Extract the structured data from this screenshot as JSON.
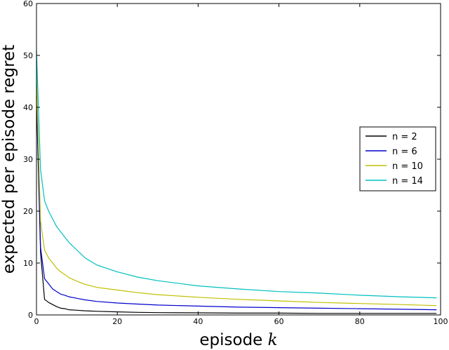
{
  "chart_data": {
    "type": "line",
    "title": "",
    "xlabel_prefix": "episode ",
    "xlabel_var": "k",
    "ylabel": "expected per episode regret",
    "xlim": [
      0,
      100
    ],
    "ylim": [
      0,
      60
    ],
    "xticks": [
      "0",
      "20",
      "40",
      "60",
      "80",
      "100"
    ],
    "yticks": [
      "0",
      "10",
      "20",
      "30",
      "40",
      "50",
      "60"
    ],
    "grid": false,
    "legend_position": "center-right",
    "x": [
      0,
      1,
      2,
      3,
      4,
      5,
      6,
      7,
      8,
      10,
      12,
      15,
      20,
      25,
      30,
      40,
      50,
      60,
      70,
      80,
      90,
      99
    ],
    "series": [
      {
        "name": "n = 2",
        "color": "#000000",
        "values": [
          42,
          12,
          3.0,
          2.4,
          2.0,
          1.6,
          1.3,
          1.2,
          1.0,
          0.9,
          0.8,
          0.7,
          0.6,
          0.5,
          0.45,
          0.4,
          0.35,
          0.35,
          0.3,
          0.3,
          0.3,
          0.3
        ]
      },
      {
        "name": "n = 6",
        "color": "#0000cc",
        "values": [
          44,
          13,
          7.0,
          6.0,
          5.0,
          4.5,
          4.0,
          3.8,
          3.5,
          3.2,
          2.9,
          2.6,
          2.3,
          2.1,
          1.9,
          1.7,
          1.5,
          1.4,
          1.3,
          1.2,
          1.1,
          1.0
        ]
      },
      {
        "name": "n = 10",
        "color": "#bfbf00",
        "values": [
          46,
          18,
          12.5,
          11.0,
          10.0,
          9.0,
          8.3,
          7.8,
          7.2,
          6.5,
          5.9,
          5.3,
          4.8,
          4.3,
          3.9,
          3.4,
          3.0,
          2.7,
          2.4,
          2.2,
          2.0,
          1.8
        ]
      },
      {
        "name": "n = 14",
        "color": "#00bfbf",
        "values": [
          51,
          28,
          22,
          20,
          18.5,
          17,
          16,
          15,
          14,
          12.5,
          11.0,
          9.6,
          8.3,
          7.3,
          6.6,
          5.6,
          5.0,
          4.5,
          4.2,
          3.8,
          3.5,
          3.3
        ]
      }
    ]
  }
}
